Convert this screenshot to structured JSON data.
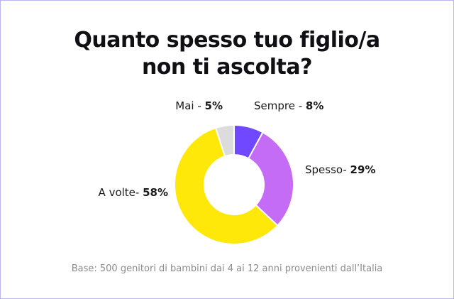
{
  "title_lines": [
    "Quanto spesso tuo figlio/a",
    "non ti ascolta?"
  ],
  "base_note": "Base: 500 genitori di bambini dai 4 ai 12 anni provenienti dall’Italia",
  "chart_data": {
    "type": "pie",
    "title": "Quanto spesso tuo figlio/a non ti ascolta?",
    "donut": true,
    "slices": [
      {
        "name": "Sempre",
        "value": 8,
        "label_prefix": "Sempre - ",
        "label_value": "8%",
        "color": "#6f48ff"
      },
      {
        "name": "Spesso",
        "value": 29,
        "label_prefix": "Spesso- ",
        "label_value": "29%",
        "color": "#c46cf5"
      },
      {
        "name": "A volte",
        "value": 58,
        "label_prefix": "A volte- ",
        "label_value": "58%",
        "color": "#fde80a"
      },
      {
        "name": "Mai",
        "value": 5,
        "label_prefix": "Mai - ",
        "label_value": "5%",
        "color": "#dcdcdc"
      }
    ]
  }
}
